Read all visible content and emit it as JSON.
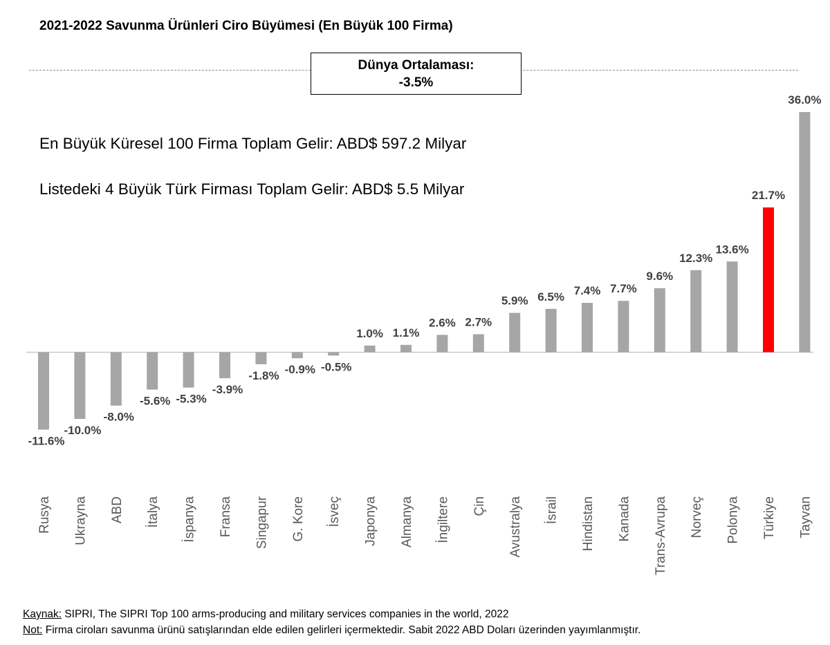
{
  "header": {
    "title": "2021-2022 Savunma Ürünleri Ciro Büyümesi (En Büyük 100 Firma)"
  },
  "average": {
    "label": "Dünya Ortalaması:",
    "value_label": "-3.5%",
    "value": -3.5
  },
  "info": {
    "total_top100": "En Büyük Küresel 100 Firma Toplam Gelir: ABD$ 597.2 Milyar",
    "total_turkish": "Listedeki 4 Büyük Türk Firması Toplam Gelir: ABD$ 5.5 Milyar"
  },
  "footer": {
    "source_label": "Kaynak:",
    "source_text": " SIPRI, The SIPRI Top 100 arms-producing and military services companies in the world, 2022",
    "note_label": "Not:",
    "note_text": " Firma ciroları savunma ürünü satışlarından elde edilen gelirleri içermektedir. Sabit 2022 ABD Doları üzerinden yayımlanmıştır."
  },
  "colors": {
    "bar": "#a6a6a6",
    "highlight": "#ff0000",
    "label": "#404040",
    "axis_text": "#595959"
  },
  "chart_data": {
    "type": "bar",
    "title": "2021-2022 Savunma Ürünleri Ciro Büyümesi (En Büyük 100 Firma)",
    "xlabel": "",
    "ylabel": "",
    "ylim": [
      -11.6,
      36.0
    ],
    "highlight": "Türkiye",
    "categories": [
      "Rusya",
      "Ukrayna",
      "ABD",
      "İtalya",
      "İspanya",
      "Fransa",
      "Singapur",
      "G. Kore",
      "İsveç",
      "Japonya",
      "Almanya",
      "İngiltere",
      "Çin",
      "Avustralya",
      "İsrail",
      "Hindistan",
      "Kanada",
      "Trans-Avrupa",
      "Norveç",
      "Polonya",
      "Türkiye",
      "Tayvan"
    ],
    "values": [
      -11.6,
      -10.0,
      -8.0,
      -5.6,
      -5.3,
      -3.9,
      -1.8,
      -0.9,
      -0.5,
      1.0,
      1.1,
      2.6,
      2.7,
      5.9,
      6.5,
      7.4,
      7.7,
      9.6,
      12.3,
      13.6,
      21.7,
      36.0
    ],
    "labels": [
      "-11.6%",
      "-10.0%",
      "-8.0%",
      "-5.6%",
      "-5.3%",
      "-3.9%",
      "-1.8%",
      "-0.9%",
      "-0.5%",
      "1.0%",
      "1.1%",
      "2.6%",
      "2.7%",
      "5.9%",
      "6.5%",
      "7.4%",
      "7.7%",
      "9.6%",
      "12.3%",
      "13.6%",
      "21.7%",
      "36.0%"
    ]
  }
}
